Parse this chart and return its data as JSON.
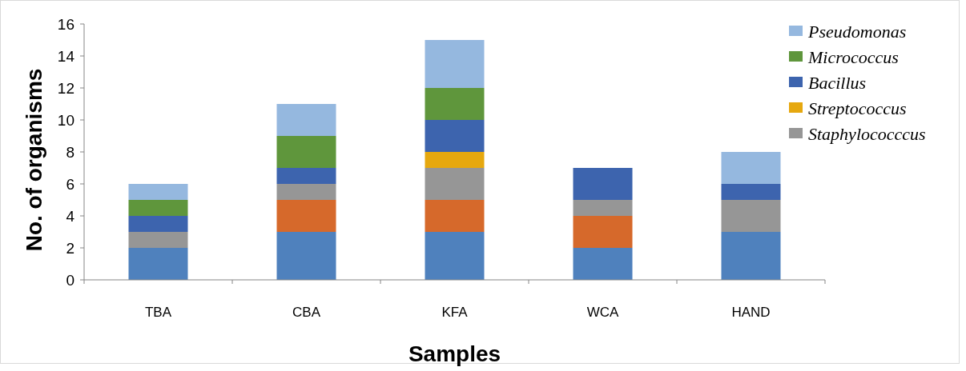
{
  "chart_data": {
    "type": "bar",
    "stacked": true,
    "xlabel": "Samples",
    "ylabel": "No. of organisms",
    "categories": [
      "TBA",
      "CBA",
      "KFA",
      "WCA",
      "HAND"
    ],
    "ylim": [
      0,
      16
    ],
    "yticks": [
      0,
      2,
      4,
      6,
      8,
      10,
      12,
      14,
      16
    ],
    "grid": false,
    "legend": "top right",
    "series": [
      {
        "color": "#4f81bd",
        "values": [
          2,
          3,
          3,
          2,
          3
        ]
      },
      {
        "color": "#d6692b",
        "values": [
          0,
          2,
          2,
          2,
          0
        ]
      },
      {
        "name": "Staphylococccus",
        "color": "#969696",
        "values": [
          1,
          1,
          2,
          1,
          2
        ]
      },
      {
        "name": "Streptococcus",
        "color": "#e6a80f",
        "values": [
          0,
          0,
          1,
          0,
          0
        ]
      },
      {
        "name": "Bacillus",
        "color": "#3d64ae",
        "values": [
          1,
          1,
          2,
          2,
          1
        ]
      },
      {
        "name": "Micrococcus",
        "color": "#5f963c",
        "values": [
          1,
          2,
          2,
          0,
          0
        ]
      },
      {
        "name": "Pseudomonas",
        "color": "#95b8df",
        "values": [
          1,
          2,
          3,
          0,
          2
        ]
      }
    ]
  }
}
